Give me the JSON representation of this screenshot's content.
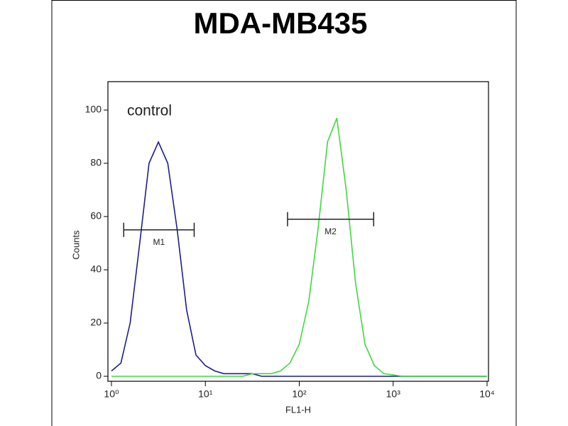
{
  "chart_data": {
    "type": "line",
    "title": "MDA-MB435",
    "x_label": "FL1-H",
    "y_label": "Counts",
    "xscale": "log",
    "x": [
      1,
      1.26,
      1.58,
      2,
      2.51,
      3.16,
      3.98,
      5.01,
      6.31,
      7.94,
      10,
      12.6,
      15.8,
      20,
      25.1,
      31.6,
      39.8,
      50.1,
      63.1,
      79.4,
      100,
      126,
      158,
      200,
      251,
      316,
      398,
      501,
      631,
      794,
      1000,
      1259,
      1585,
      1995,
      2512,
      3162,
      3981,
      5012,
      6310,
      7943,
      10000
    ],
    "series": [
      {
        "name": "control",
        "color": "#1c1f8c",
        "values": [
          2,
          5,
          20,
          50,
          80,
          88,
          80,
          55,
          25,
          8,
          4,
          2,
          1,
          1,
          1,
          1,
          0,
          0,
          0,
          0,
          0,
          0,
          0,
          0,
          0,
          0,
          0,
          0,
          0,
          0,
          0,
          0,
          0,
          0,
          0,
          0,
          0,
          0,
          0,
          0,
          0
        ]
      },
      {
        "color": "#3fd83f",
        "values": [
          0,
          0,
          0,
          0,
          0,
          0,
          0,
          0,
          0,
          0,
          0,
          0,
          0,
          0,
          0,
          1,
          1,
          1,
          2,
          5,
          12,
          28,
          55,
          88,
          97,
          70,
          35,
          12,
          4,
          1,
          0.5,
          0,
          0,
          0,
          0,
          0,
          0,
          0,
          0,
          0,
          0
        ]
      }
    ],
    "markers": [
      {
        "label": "M1",
        "range": [
          1.35,
          7.6
        ],
        "y": 55
      },
      {
        "label": "M2",
        "range": [
          75,
          620
        ],
        "y": 59
      }
    ],
    "xlim": [
      1,
      10000
    ],
    "ylim": [
      -2,
      110
    ],
    "xticks": [
      {
        "value": 1,
        "label": "10⁰"
      },
      {
        "value": 10,
        "label": "10¹"
      },
      {
        "value": 100,
        "label": "10²"
      },
      {
        "value": 1000,
        "label": "10³"
      },
      {
        "value": 10000,
        "label": "10⁴"
      }
    ],
    "yticks": [
      0,
      20,
      40,
      60,
      80,
      100
    ]
  }
}
